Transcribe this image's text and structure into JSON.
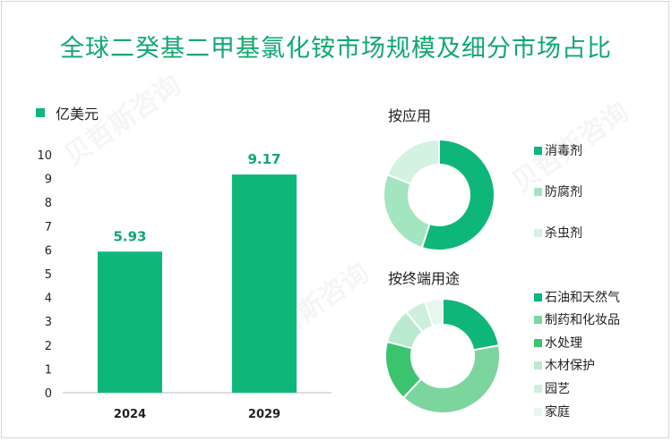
{
  "title": "全球二癸基二甲基氯化铵市场规模及细分市场占比",
  "colors": {
    "accent": "#0fb67a",
    "value_label": "#0fa86f"
  },
  "chart_data": [
    {
      "type": "bar",
      "legend": "亿美元",
      "categories": [
        "2024",
        "2029"
      ],
      "values": [
        5.93,
        9.17
      ],
      "value_labels": [
        "5.93",
        "9.17"
      ],
      "ylim": [
        0,
        10
      ],
      "yticks": [
        "0",
        "1",
        "2",
        "3",
        "4",
        "5",
        "6",
        "7",
        "8",
        "9",
        "10"
      ],
      "color": "#0fb67a"
    },
    {
      "type": "pie",
      "title": "按应用",
      "labels": [
        "消毒剂",
        "防腐剂",
        "杀虫剂"
      ],
      "values": [
        55,
        26,
        19
      ],
      "colors": [
        "#0fb67a",
        "#a3e4c1",
        "#d3f2e1"
      ]
    },
    {
      "type": "pie",
      "title": "按终端用途",
      "labels": [
        "石油和天然气",
        "制药和化妆品",
        "水处理",
        "木材保护",
        "园艺",
        "家庭"
      ],
      "values": [
        22,
        40,
        17,
        10,
        6,
        5
      ],
      "colors": [
        "#0fb67a",
        "#7dd59e",
        "#3cc46e",
        "#b9ead0",
        "#cdefdc",
        "#e6f7ee"
      ]
    }
  ]
}
